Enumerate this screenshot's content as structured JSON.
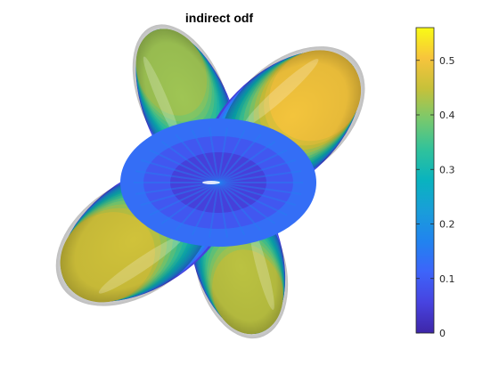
{
  "chart_data": {
    "type": "surface",
    "title": "indirect odf",
    "colormap": "parula",
    "grid": false,
    "axes_visible": false,
    "colorbar": {
      "location": "right",
      "range": [
        0,
        0.56
      ],
      "ticks": [
        0,
        0.1,
        0.2,
        0.3,
        0.4,
        0.5
      ],
      "tick_labels": [
        "0",
        "0.1",
        "0.2",
        "0.3",
        "0.4",
        "0.5"
      ]
    },
    "lobes": [
      {
        "name": "upper-left",
        "peak_value": 0.42
      },
      {
        "name": "upper-right",
        "peak_value": 0.5
      },
      {
        "name": "lower-left",
        "peak_value": 0.46
      },
      {
        "name": "lower-right",
        "peak_value": 0.44
      }
    ],
    "center_value": 0.05
  }
}
